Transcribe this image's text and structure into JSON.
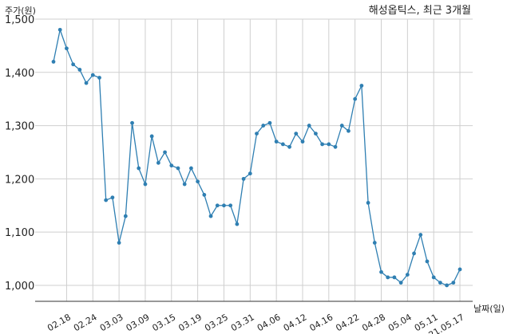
{
  "chart_data": {
    "type": "line",
    "title": "해성옵틱스, 최근 3개월",
    "ylabel": "주가(원)",
    "xlabel": "날짜(일)",
    "ylim": [
      970,
      1500
    ],
    "yticks": [
      1000,
      1100,
      1200,
      1300,
      1400,
      1500
    ],
    "ytick_labels": [
      "1,000",
      "1,100",
      "1,200",
      "1,300",
      "1,400",
      "1,500"
    ],
    "xtick_labels": [
      "02.18",
      "02.24",
      "03.03",
      "03.09",
      "03.15",
      "03.19",
      "03.25",
      "03.31",
      "04.06",
      "04.12",
      "04.16",
      "04.22",
      "04.28",
      "05.04",
      "05.11",
      "21.05.17"
    ],
    "grid": true,
    "line_color": "#2f7fb2",
    "series": [
      {
        "values": [
          1420,
          1480,
          1445,
          1415,
          1405,
          1380,
          1395,
          1390,
          1160,
          1165,
          1080,
          1130,
          1305,
          1220,
          1190,
          1280,
          1230,
          1250,
          1225,
          1220,
          1190,
          1220,
          1195,
          1170,
          1130,
          1150,
          1150,
          1150,
          1115,
          1200,
          1210,
          1285,
          1300,
          1305,
          1270,
          1265,
          1260,
          1285,
          1270,
          1300,
          1285,
          1265,
          1265,
          1260,
          1300,
          1290,
          1350,
          1375,
          1155,
          1080,
          1025,
          1015,
          1015,
          1005,
          1020,
          1060,
          1095,
          1045,
          1015,
          1005,
          1000,
          1005,
          1030
        ]
      }
    ]
  }
}
